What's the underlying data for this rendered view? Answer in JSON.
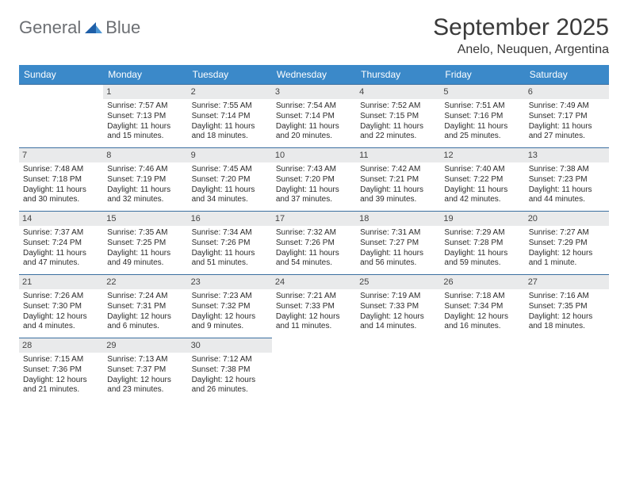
{
  "logo": {
    "text1": "General",
    "text2": "Blue"
  },
  "title": "September 2025",
  "location": "Anelo, Neuquen, Argentina",
  "colors": {
    "header_bg": "#3b89c9",
    "header_text": "#ffffff",
    "daynum_bg": "#e9eaeb",
    "row_border": "#3b6fa0",
    "logo_gray": "#6c6f73",
    "logo_blue": "#2f7fc2"
  },
  "weekdays": [
    "Sunday",
    "Monday",
    "Tuesday",
    "Wednesday",
    "Thursday",
    "Friday",
    "Saturday"
  ],
  "weeks": [
    [
      {
        "day": "",
        "text": ""
      },
      {
        "day": "1",
        "text": "Sunrise: 7:57 AM\nSunset: 7:13 PM\nDaylight: 11 hours and 15 minutes."
      },
      {
        "day": "2",
        "text": "Sunrise: 7:55 AM\nSunset: 7:14 PM\nDaylight: 11 hours and 18 minutes."
      },
      {
        "day": "3",
        "text": "Sunrise: 7:54 AM\nSunset: 7:14 PM\nDaylight: 11 hours and 20 minutes."
      },
      {
        "day": "4",
        "text": "Sunrise: 7:52 AM\nSunset: 7:15 PM\nDaylight: 11 hours and 22 minutes."
      },
      {
        "day": "5",
        "text": "Sunrise: 7:51 AM\nSunset: 7:16 PM\nDaylight: 11 hours and 25 minutes."
      },
      {
        "day": "6",
        "text": "Sunrise: 7:49 AM\nSunset: 7:17 PM\nDaylight: 11 hours and 27 minutes."
      }
    ],
    [
      {
        "day": "7",
        "text": "Sunrise: 7:48 AM\nSunset: 7:18 PM\nDaylight: 11 hours and 30 minutes."
      },
      {
        "day": "8",
        "text": "Sunrise: 7:46 AM\nSunset: 7:19 PM\nDaylight: 11 hours and 32 minutes."
      },
      {
        "day": "9",
        "text": "Sunrise: 7:45 AM\nSunset: 7:20 PM\nDaylight: 11 hours and 34 minutes."
      },
      {
        "day": "10",
        "text": "Sunrise: 7:43 AM\nSunset: 7:20 PM\nDaylight: 11 hours and 37 minutes."
      },
      {
        "day": "11",
        "text": "Sunrise: 7:42 AM\nSunset: 7:21 PM\nDaylight: 11 hours and 39 minutes."
      },
      {
        "day": "12",
        "text": "Sunrise: 7:40 AM\nSunset: 7:22 PM\nDaylight: 11 hours and 42 minutes."
      },
      {
        "day": "13",
        "text": "Sunrise: 7:38 AM\nSunset: 7:23 PM\nDaylight: 11 hours and 44 minutes."
      }
    ],
    [
      {
        "day": "14",
        "text": "Sunrise: 7:37 AM\nSunset: 7:24 PM\nDaylight: 11 hours and 47 minutes."
      },
      {
        "day": "15",
        "text": "Sunrise: 7:35 AM\nSunset: 7:25 PM\nDaylight: 11 hours and 49 minutes."
      },
      {
        "day": "16",
        "text": "Sunrise: 7:34 AM\nSunset: 7:26 PM\nDaylight: 11 hours and 51 minutes."
      },
      {
        "day": "17",
        "text": "Sunrise: 7:32 AM\nSunset: 7:26 PM\nDaylight: 11 hours and 54 minutes."
      },
      {
        "day": "18",
        "text": "Sunrise: 7:31 AM\nSunset: 7:27 PM\nDaylight: 11 hours and 56 minutes."
      },
      {
        "day": "19",
        "text": "Sunrise: 7:29 AM\nSunset: 7:28 PM\nDaylight: 11 hours and 59 minutes."
      },
      {
        "day": "20",
        "text": "Sunrise: 7:27 AM\nSunset: 7:29 PM\nDaylight: 12 hours and 1 minute."
      }
    ],
    [
      {
        "day": "21",
        "text": "Sunrise: 7:26 AM\nSunset: 7:30 PM\nDaylight: 12 hours and 4 minutes."
      },
      {
        "day": "22",
        "text": "Sunrise: 7:24 AM\nSunset: 7:31 PM\nDaylight: 12 hours and 6 minutes."
      },
      {
        "day": "23",
        "text": "Sunrise: 7:23 AM\nSunset: 7:32 PM\nDaylight: 12 hours and 9 minutes."
      },
      {
        "day": "24",
        "text": "Sunrise: 7:21 AM\nSunset: 7:33 PM\nDaylight: 12 hours and 11 minutes."
      },
      {
        "day": "25",
        "text": "Sunrise: 7:19 AM\nSunset: 7:33 PM\nDaylight: 12 hours and 14 minutes."
      },
      {
        "day": "26",
        "text": "Sunrise: 7:18 AM\nSunset: 7:34 PM\nDaylight: 12 hours and 16 minutes."
      },
      {
        "day": "27",
        "text": "Sunrise: 7:16 AM\nSunset: 7:35 PM\nDaylight: 12 hours and 18 minutes."
      }
    ],
    [
      {
        "day": "28",
        "text": "Sunrise: 7:15 AM\nSunset: 7:36 PM\nDaylight: 12 hours and 21 minutes."
      },
      {
        "day": "29",
        "text": "Sunrise: 7:13 AM\nSunset: 7:37 PM\nDaylight: 12 hours and 23 minutes."
      },
      {
        "day": "30",
        "text": "Sunrise: 7:12 AM\nSunset: 7:38 PM\nDaylight: 12 hours and 26 minutes."
      },
      {
        "day": "",
        "text": ""
      },
      {
        "day": "",
        "text": ""
      },
      {
        "day": "",
        "text": ""
      },
      {
        "day": "",
        "text": ""
      }
    ]
  ]
}
